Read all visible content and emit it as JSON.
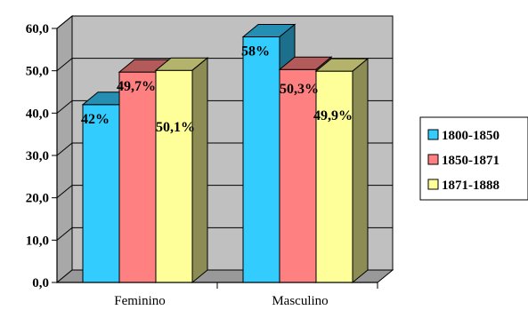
{
  "chart_data": {
    "type": "bar",
    "title": "",
    "xlabel": "",
    "ylabel": "",
    "categories": [
      "Feminino",
      "Masculino"
    ],
    "ylim": [
      0,
      60
    ],
    "y_ticks": [
      "0,0",
      "10,0",
      "20,0",
      "30,0",
      "40,0",
      "50,0",
      "60,0"
    ],
    "grid": true,
    "three_d": true,
    "legend_position": "right",
    "series": [
      {
        "name": "1800-1850",
        "values": [
          42,
          58
        ],
        "labels": [
          "42%",
          "58%"
        ],
        "color": "#33ccff"
      },
      {
        "name": "1850-1871",
        "values": [
          49.7,
          50.3
        ],
        "labels": [
          "49,7%",
          "50,3%"
        ],
        "color": "#ff8080"
      },
      {
        "name": "1871-1888",
        "values": [
          50.1,
          49.9
        ],
        "labels": [
          "50,1%",
          "49,9%"
        ],
        "color": "#ffff99"
      }
    ],
    "plot_background": "#c0c0c0"
  }
}
